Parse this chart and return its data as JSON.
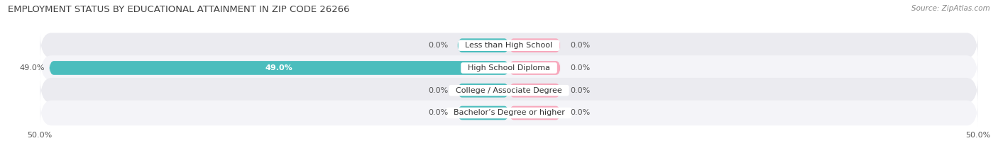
{
  "title": "EMPLOYMENT STATUS BY EDUCATIONAL ATTAINMENT IN ZIP CODE 26266",
  "source": "Source: ZipAtlas.com",
  "categories": [
    "Less than High School",
    "High School Diploma",
    "College / Associate Degree",
    "Bachelor’s Degree or higher"
  ],
  "labor_force_vals": [
    0.0,
    49.0,
    0.0,
    0.0
  ],
  "unemployed_vals": [
    0.0,
    0.0,
    0.0,
    0.0
  ],
  "labor_force_color": "#4bbdbd",
  "unemployed_color": "#f7a8bc",
  "row_bg_odd": "#ebebf0",
  "row_bg_even": "#f4f4f8",
  "x_min": -50,
  "x_max": 50,
  "stub_size": 5.5,
  "title_fontsize": 9.5,
  "source_fontsize": 7.5,
  "label_fontsize": 8,
  "cat_fontsize": 8,
  "legend_fontsize": 8,
  "tick_fontsize": 8
}
